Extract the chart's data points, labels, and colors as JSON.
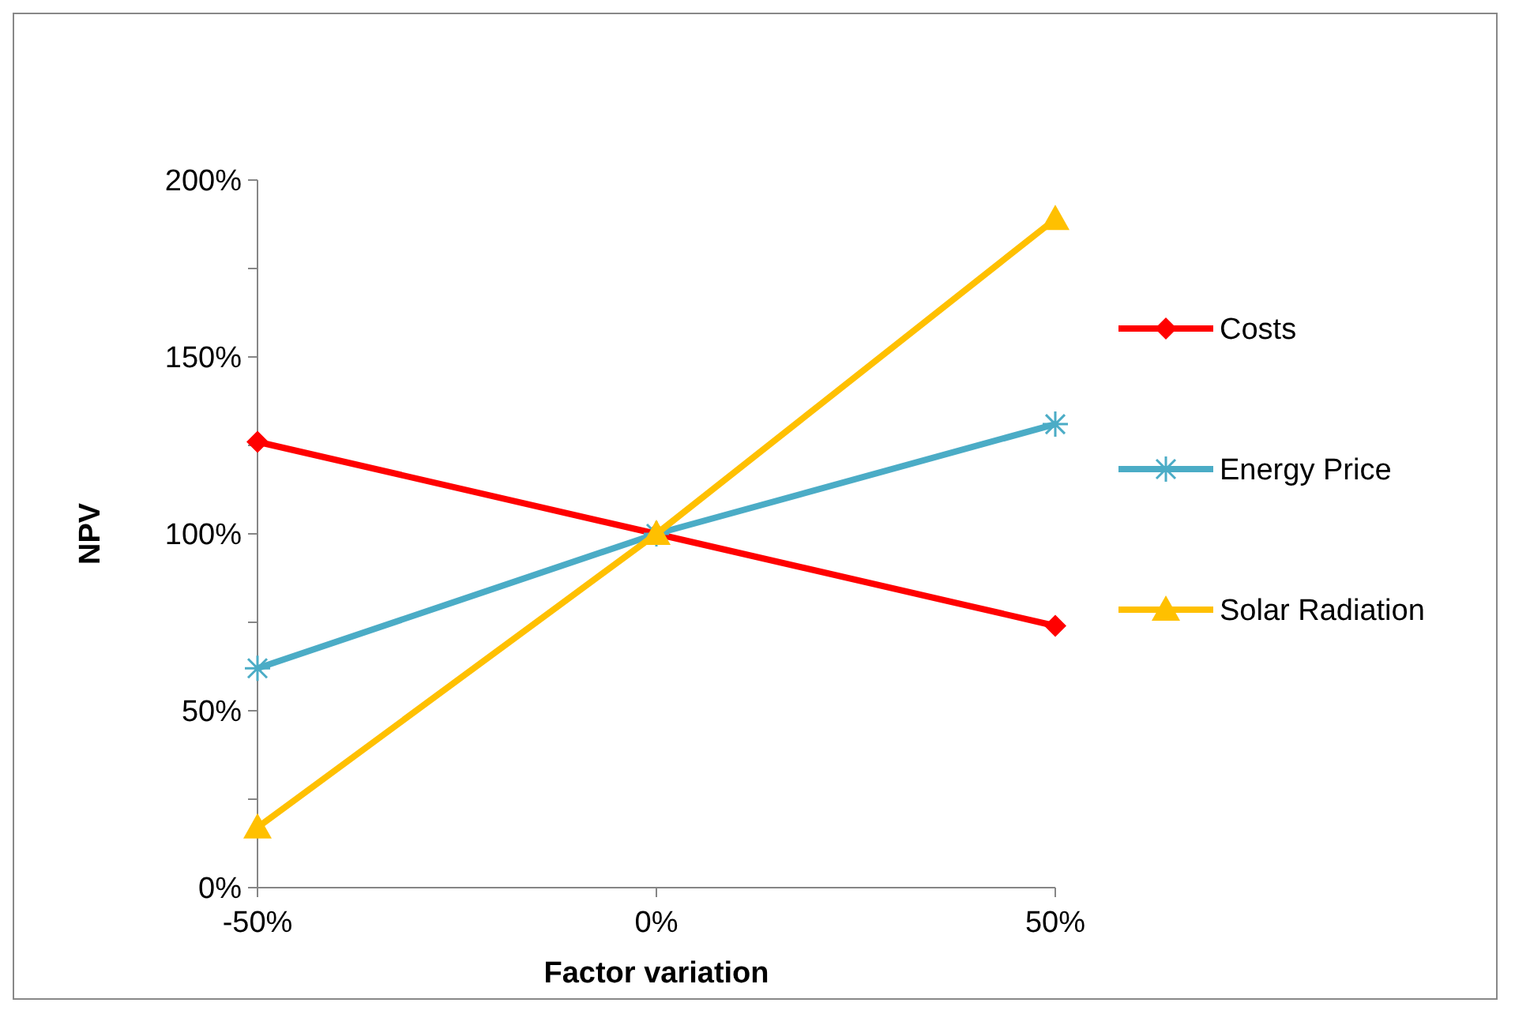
{
  "chart_data": {
    "type": "line",
    "xlabel": "Factor variation",
    "ylabel": "NPV",
    "x": [
      -50,
      0,
      50
    ],
    "xlim": [
      -50,
      50
    ],
    "xticks": [
      {
        "value": -50,
        "label": "-50%"
      },
      {
        "value": 0,
        "label": "0%"
      },
      {
        "value": 50,
        "label": "50%"
      }
    ],
    "ylim": [
      0,
      200
    ],
    "yticks": [
      {
        "value": 0,
        "label": "0%"
      },
      {
        "value": 25,
        "label": null
      },
      {
        "value": 50,
        "label": "50%"
      },
      {
        "value": 75,
        "label": null
      },
      {
        "value": 100,
        "label": "100%"
      },
      {
        "value": 125,
        "label": null
      },
      {
        "value": 150,
        "label": "150%"
      },
      {
        "value": 175,
        "label": null
      },
      {
        "value": 200,
        "label": "200%"
      }
    ],
    "series": [
      {
        "name": "Costs",
        "color": "#ff0000",
        "marker": "diamond",
        "values": [
          126,
          100,
          74
        ]
      },
      {
        "name": "Energy Price",
        "color": "#4bacc6",
        "marker": "cross",
        "values": [
          62,
          100,
          131
        ]
      },
      {
        "name": "Solar Radiation",
        "color": "#ffc000",
        "marker": "triangle",
        "values": [
          17,
          100,
          189
        ]
      }
    ],
    "legend": "right",
    "grid": false,
    "line_style": "solid"
  }
}
